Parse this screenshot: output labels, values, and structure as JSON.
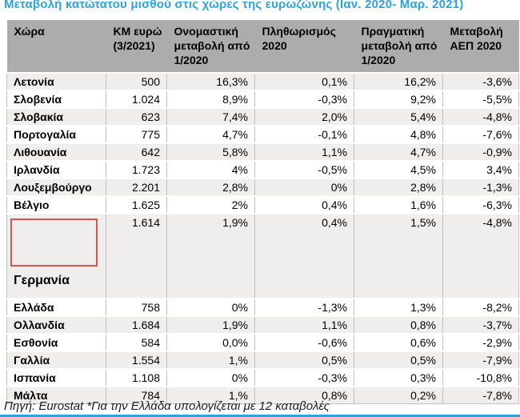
{
  "title": "Μεταβολή κατώτατου μισθού στις χώρες της ευρωζώνης (Ιαν. 2020- Μαρ. 2021)",
  "footer": "Πηγή: Eurostat *Για την Ελλάδα υπολογίζεται με 12 καταβολές",
  "colors": {
    "title_blue": "#2BA3DC",
    "header_bg": "#ACACAC",
    "stripe_bg": "#EFEEEC",
    "red_box_border": "#D9544C",
    "bottom_line": "#2BA3DC",
    "grid_border": "#C2C2C2"
  },
  "table": {
    "columns": [
      "Χώρα",
      "ΚΜ ευρώ (3/2021)",
      "Ονομαστική μεταβολή από  1/2020",
      "Πληθωρισμός 2020",
      "Πραγματική μεταβολή από 1/2020",
      "Μεταβολή ΑΕΠ 2020"
    ],
    "rows": [
      {
        "country": "Λετονία",
        "km": "500",
        "nominal": "16,3%",
        "inflation": "0,1%",
        "real": "16,2%",
        "gdp": "-3,6%"
      },
      {
        "country": "Σλοβενία",
        "km": "1.024",
        "nominal": "8,9%",
        "inflation": "-0,3%",
        "real": "9,2%",
        "gdp": "-5,5%"
      },
      {
        "country": "Σλοβακία",
        "km": "623",
        "nominal": "7,4%",
        "inflation": "2,0%",
        "real": "5,4%",
        "gdp": "-4,8%"
      },
      {
        "country": "Πορτογαλία",
        "km": "775",
        "nominal": "4,7%",
        "inflation": "-0,1%",
        "real": "4,8%",
        "gdp": "-7,6%"
      },
      {
        "country": "Λιθουανία",
        "km": "642",
        "nominal": "5,8%",
        "inflation": "1,1%",
        "real": "4,7%",
        "gdp": "-0,9%"
      },
      {
        "country": "Ιρλανδία",
        "km": "1.723",
        "nominal": "4%",
        "inflation": "-0,5%",
        "real": "4,5%",
        "gdp": "3,4%"
      },
      {
        "country": "Λουξεμβούργο",
        "km": "2.201",
        "nominal": "2,8%",
        "inflation": "0%",
        "real": "2,8%",
        "gdp": "-1,3%"
      },
      {
        "country": "Βέλγιο",
        "km": "1.625",
        "nominal": "2%",
        "inflation": "0,4%",
        "real": "1,6%",
        "gdp": "-6,3%"
      },
      {
        "country": "Γερμανία",
        "km": "1.614",
        "nominal": "1,9%",
        "inflation": "0,4%",
        "real": "1,5%",
        "gdp": "-4,8%",
        "tall": true,
        "red_box": true
      },
      {
        "country": "Ελλάδα",
        "km": "758",
        "nominal": "0%",
        "inflation": "-1,3%",
        "real": "1,3%",
        "gdp": "-8,2%"
      },
      {
        "country": "Ολλανδία",
        "km": "1.684",
        "nominal": "1,9%",
        "inflation": "1,1%",
        "real": "0,8%",
        "gdp": "-3,7%"
      },
      {
        "country": "Εσθονία",
        "km": "584",
        "nominal": "0,0%",
        "inflation": "-0,6%",
        "real": "0,6%",
        "gdp": "-2,9%"
      },
      {
        "country": "Γαλλία",
        "km": "1.554",
        "nominal": "1,%",
        "inflation": "0,5%",
        "real": "0,5%",
        "gdp": "-7,9%"
      },
      {
        "country": "Ισπανία",
        "km": "1.108",
        "nominal": "0%",
        "inflation": "-0,3%",
        "real": "0,3%",
        "gdp": "-10,8%"
      },
      {
        "country": "Μάλτα",
        "km": "784",
        "nominal": "1,%",
        "inflation": "0,8%",
        "real": "0,2%",
        "gdp": "-7,8%"
      }
    ]
  },
  "chart_data": {
    "type": "table",
    "title": "Μεταβολή κατώτατου μισθού στις χώρες της ευρωζώνης (Ιαν. 2020- Μαρ. 2021)",
    "columns": [
      "Χώρα",
      "ΚΜ ευρώ (3/2021)",
      "Ονομαστική μεταβολή από 1/2020",
      "Πληθωρισμός 2020",
      "Πραγματική μεταβολή από 1/2020",
      "Μεταβολή ΑΕΠ 2020"
    ],
    "rows": [
      [
        "Λετονία",
        500,
        "16,3%",
        "0,1%",
        "16,2%",
        "-3,6%"
      ],
      [
        "Σλοβενία",
        1024,
        "8,9%",
        "-0,3%",
        "9,2%",
        "-5,5%"
      ],
      [
        "Σλοβακία",
        623,
        "7,4%",
        "2,0%",
        "5,4%",
        "-4,8%"
      ],
      [
        "Πορτογαλία",
        775,
        "4,7%",
        "-0,1%",
        "4,8%",
        "-7,6%"
      ],
      [
        "Λιθουανία",
        642,
        "5,8%",
        "1,1%",
        "4,7%",
        "-0,9%"
      ],
      [
        "Ιρλανδία",
        1723,
        "4%",
        "-0,5%",
        "4,5%",
        "3,4%"
      ],
      [
        "Λουξεμβούργο",
        2201,
        "2,8%",
        "0%",
        "2,8%",
        "-1,3%"
      ],
      [
        "Βέλγιο",
        1625,
        "2%",
        "0,4%",
        "1,6%",
        "-6,3%"
      ],
      [
        "Γερμανία",
        1614,
        "1,9%",
        "0,4%",
        "1,5%",
        "-4,8%"
      ],
      [
        "Ελλάδα",
        758,
        "0%",
        "-1,3%",
        "1,3%",
        "-8,2%"
      ],
      [
        "Ολλανδία",
        1684,
        "1,9%",
        "1,1%",
        "0,8%",
        "-3,7%"
      ],
      [
        "Εσθονία",
        584,
        "0,0%",
        "-0,6%",
        "0,6%",
        "-2,9%"
      ],
      [
        "Γαλλία",
        1554,
        "1,%",
        "0,5%",
        "0,5%",
        "-7,9%"
      ],
      [
        "Ισπανία",
        1108,
        "0%",
        "-0,3%",
        "0,3%",
        "-10,8%"
      ],
      [
        "Μάλτα",
        784,
        "1,%",
        "0,8%",
        "0,2%",
        "-7,8%"
      ]
    ],
    "notes": "Πηγή: Eurostat *Για την Ελλάδα υπολογίζεται με 12 καταβολές. Η γραμμή της Γερμανίας επισημαίνεται με κόκκινο πλαίσιο."
  }
}
